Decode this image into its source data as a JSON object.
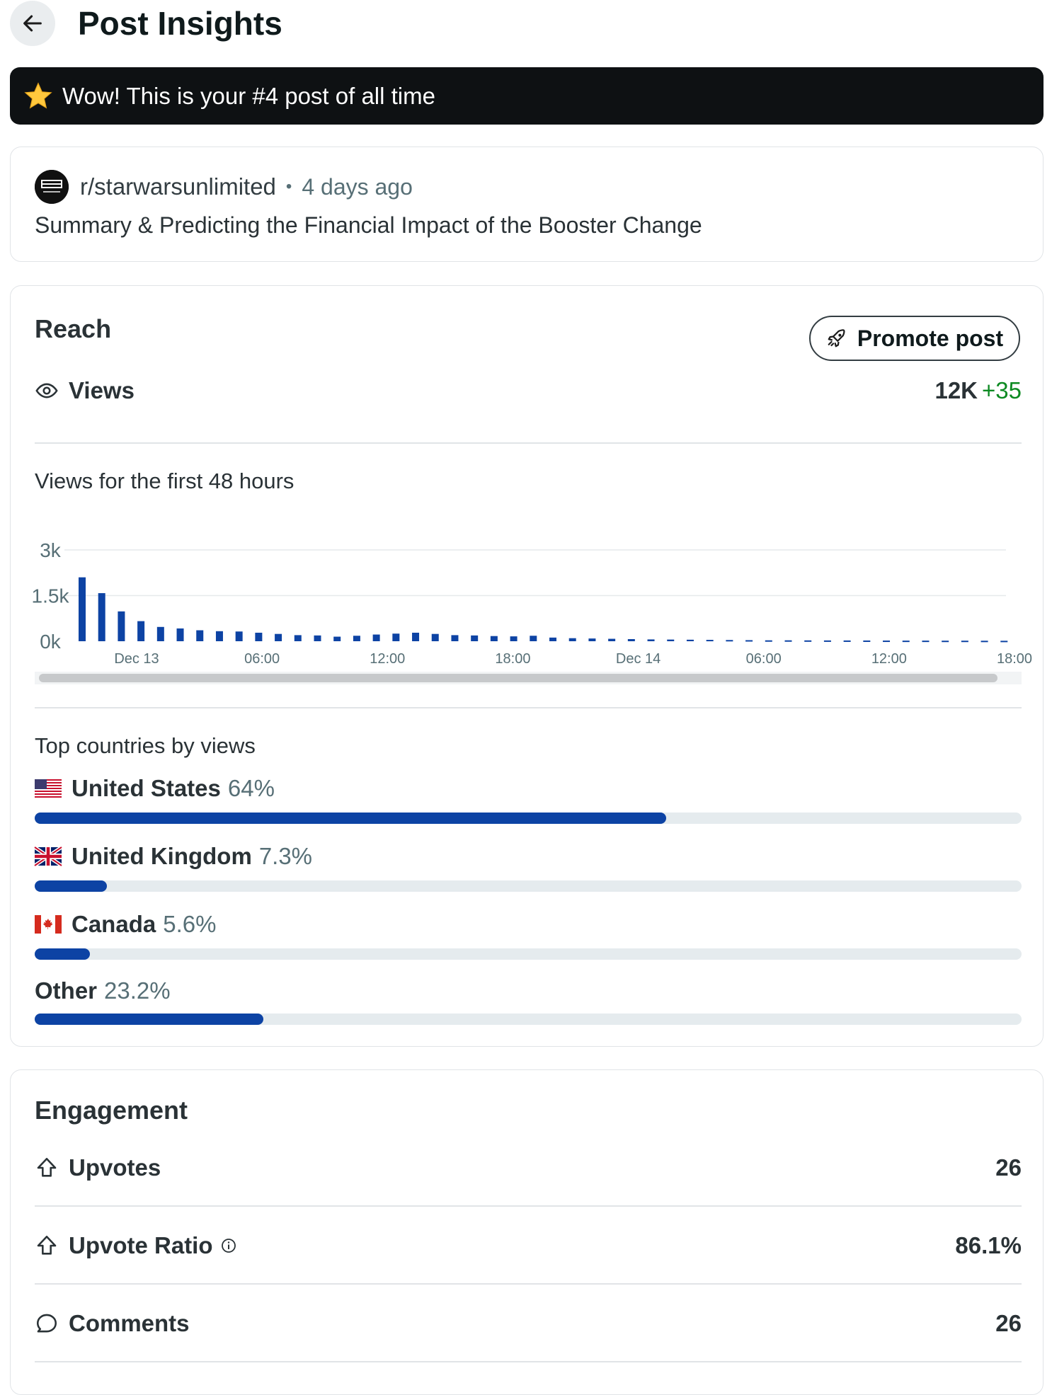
{
  "header": {
    "title": "Post Insights",
    "back_icon": "arrow-left-icon"
  },
  "banner": {
    "icon": "star-icon",
    "text": "Wow! This is your #4 post of all time"
  },
  "post": {
    "subreddit": "r/starwarsunlimited",
    "separator": "•",
    "time": "4 days ago",
    "title": "Summary & Predicting the Financial Impact of the Booster Change"
  },
  "reach": {
    "title": "Reach",
    "promote_label": "Promote post",
    "views_label": "Views",
    "views_value": "12K",
    "views_delta": "+35",
    "chart_caption": "Views for the first 48 hours",
    "countries_title": "Top countries by views",
    "countries": [
      {
        "name": "United States",
        "pct_label": "64%",
        "pct": 64,
        "flag": "us-flag-icon"
      },
      {
        "name": "United Kingdom",
        "pct_label": "7.3%",
        "pct": 7.3,
        "flag": "uk-flag-icon"
      },
      {
        "name": "Canada",
        "pct_label": "5.6%",
        "pct": 5.6,
        "flag": "canada-flag-icon"
      },
      {
        "name": "Other",
        "pct_label": "23.2%",
        "pct": 23.2,
        "flag": ""
      }
    ]
  },
  "engagement": {
    "title": "Engagement",
    "rows": [
      {
        "label": "Upvotes",
        "value": "26",
        "icon": "upvote-icon"
      },
      {
        "label": "Upvote Ratio",
        "value": "86.1%",
        "icon": "upvote-icon",
        "info": true
      },
      {
        "label": "Comments",
        "value": "26",
        "icon": "comment-icon"
      }
    ]
  },
  "colors": {
    "accent": "#0d43a4",
    "positive": "#0d8a22",
    "banner_bg": "#0e1113"
  },
  "chart_data": {
    "type": "bar",
    "title": "Views for the first 48 hours",
    "y_tick_labels": [
      "3k",
      "1.5k",
      "0k"
    ],
    "ylim": [
      0,
      3000
    ],
    "x_tick_labels": [
      "Dec 13",
      "06:00",
      "12:00",
      "18:00",
      "Dec 14",
      "06:00",
      "12:00",
      "18:00"
    ],
    "values": [
      2100,
      1580,
      980,
      660,
      470,
      420,
      360,
      330,
      320,
      280,
      240,
      200,
      190,
      150,
      180,
      220,
      250,
      280,
      240,
      200,
      190,
      170,
      160,
      180,
      120,
      100,
      90,
      80,
      70,
      60,
      55,
      50,
      45,
      40,
      35,
      30,
      30,
      28,
      26,
      25,
      24,
      22,
      20,
      20,
      18,
      18,
      16,
      15
    ],
    "grid": true
  }
}
